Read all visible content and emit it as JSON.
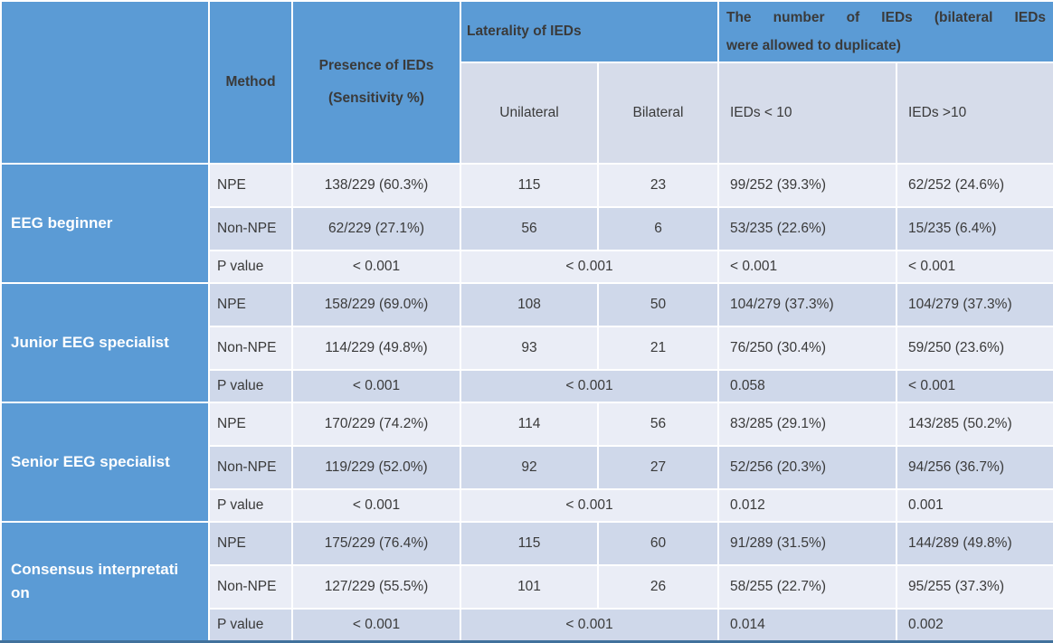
{
  "header": {
    "corner": "",
    "method": "Method",
    "presence": [
      "Presence of IEDs",
      "(Sensitivity %)"
    ],
    "laterality": "Laterality of IEDs",
    "number": [
      "The number of IEDs (bilateral IEDs",
      "were allowed to duplicate)"
    ],
    "sub": {
      "unilateral": "Unilateral",
      "bilateral": "Bilateral",
      "ieds_lt10": "IEDs < 10",
      "ieds_gt10": "IEDs >10"
    }
  },
  "groups": [
    {
      "label": "EEG beginner",
      "rows": [
        {
          "method": "NPE",
          "presence": "138/229 (60.3%)",
          "unilateral": "115",
          "bilateral": "23",
          "ieds_lt10": "99/252 (39.3%)",
          "ieds_gt10": "62/252 (24.6%)"
        },
        {
          "method": "Non-NPE",
          "presence": "62/229 (27.1%)",
          "unilateral": "56",
          "bilateral": "6",
          "ieds_lt10": "53/235 (22.6%)",
          "ieds_gt10": "15/235 (6.4%)"
        },
        {
          "method": "P value",
          "presence": "< 0.001",
          "laterality": "< 0.001",
          "ieds_lt10": "< 0.001",
          "ieds_gt10": "< 0.001"
        }
      ]
    },
    {
      "label": "Junior EEG specialist",
      "rows": [
        {
          "method": "NPE",
          "presence": "158/229 (69.0%)",
          "unilateral": "108",
          "bilateral": "50",
          "ieds_lt10": "104/279 (37.3%)",
          "ieds_gt10": "104/279 (37.3%)"
        },
        {
          "method": "Non-NPE",
          "presence": "114/229 (49.8%)",
          "unilateral": "93",
          "bilateral": "21",
          "ieds_lt10": "76/250 (30.4%)",
          "ieds_gt10": "59/250 (23.6%)"
        },
        {
          "method": "P value",
          "presence": "< 0.001",
          "laterality": "< 0.001",
          "ieds_lt10": "0.058",
          "ieds_gt10": "< 0.001"
        }
      ]
    },
    {
      "label": "Senior EEG specialist",
      "rows": [
        {
          "method": "NPE",
          "presence": "170/229 (74.2%)",
          "unilateral": "114",
          "bilateral": "56",
          "ieds_lt10": "83/285 (29.1%)",
          "ieds_gt10": "143/285 (50.2%)"
        },
        {
          "method": "Non-NPE",
          "presence": "119/229 (52.0%)",
          "unilateral": "92",
          "bilateral": "27",
          "ieds_lt10": "52/256 (20.3%)",
          "ieds_gt10": "94/256 (36.7%)"
        },
        {
          "method": "P value",
          "presence": "< 0.001",
          "laterality": "< 0.001",
          "ieds_lt10": "0.012",
          "ieds_gt10": "0.001"
        }
      ]
    },
    {
      "label": "Consensus interpretation",
      "rows": [
        {
          "method": "NPE",
          "presence": "175/229 (76.4%)",
          "unilateral": "115",
          "bilateral": "60",
          "ieds_lt10": "91/289 (31.5%)",
          "ieds_gt10": "144/289 (49.8%)"
        },
        {
          "method": "Non-NPE",
          "presence": "127/229 (55.5%)",
          "unilateral": "101",
          "bilateral": "26",
          "ieds_lt10": "58/255 (22.7%)",
          "ieds_gt10": "95/255 (37.3%)"
        },
        {
          "method": "P value",
          "presence": "< 0.001",
          "laterality": "< 0.001",
          "ieds_lt10": "0.014",
          "ieds_gt10": "0.002"
        }
      ]
    }
  ],
  "colors": {
    "header_blue": "#5B9BD5",
    "subheader_bg": "#D6DCEA",
    "row_light": "#EAEDF6",
    "row_dark": "#CFD8EA",
    "bottom_border": "#41719C",
    "gridline": "#FFFFFF",
    "header_text": "#FFFFFF",
    "data_text": "#3A3A3A"
  }
}
